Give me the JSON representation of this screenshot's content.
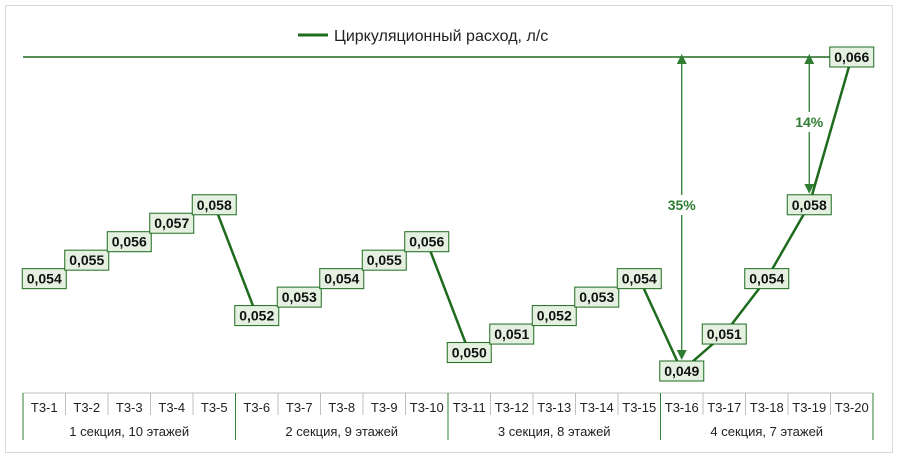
{
  "chart_data": {
    "type": "line",
    "title": "",
    "xlabel": "",
    "ylabel": "",
    "categories": [
      "Т3-1",
      "Т3-2",
      "Т3-3",
      "Т3-4",
      "Т3-5",
      "Т3-6",
      "Т3-7",
      "Т3-8",
      "Т3-9",
      "Т3-10",
      "Т3-11",
      "Т3-12",
      "Т3-13",
      "Т3-14",
      "Т3-15",
      "Т3-16",
      "Т3-17",
      "Т3-18",
      "Т3-19",
      "Т3-20"
    ],
    "series": [
      {
        "name": "Циркуляционный расход, л/с",
        "values": [
          0.054,
          0.055,
          0.056,
          0.057,
          0.058,
          0.052,
          0.053,
          0.054,
          0.055,
          0.056,
          0.05,
          0.051,
          0.052,
          0.053,
          0.054,
          0.049,
          0.051,
          0.054,
          0.058,
          0.066
        ],
        "labels": [
          "0,054",
          "0,055",
          "0,056",
          "0,057",
          "0,058",
          "0,052",
          "0,053",
          "0,054",
          "0,055",
          "0,056",
          "0,050",
          "0,051",
          "0,052",
          "0,053",
          "0,054",
          "0,049",
          "0,051",
          "0,054",
          "0,058",
          "0,066"
        ]
      }
    ],
    "groups": [
      {
        "label": "1 секция, 10 этажей",
        "from": 0,
        "to": 4
      },
      {
        "label": "2 секция, 9 этажей",
        "from": 5,
        "to": 9
      },
      {
        "label": "3 секция, 8 этажей",
        "from": 10,
        "to": 14
      },
      {
        "label": "4 секция, 7 этажей",
        "from": 15,
        "to": 19
      }
    ],
    "reference_line": {
      "value": 0.066
    },
    "annotations": [
      {
        "label": "35%",
        "category_index": 15,
        "from": 0.049,
        "to": 0.066
      },
      {
        "label": "14%",
        "category_index": 18,
        "from": 0.058,
        "to": 0.066
      }
    ],
    "legend_position": "top",
    "grid": false,
    "color": "#1e6b1e",
    "label_fill": "#e4f1e1",
    "annotation_color": "#2e7d32"
  }
}
